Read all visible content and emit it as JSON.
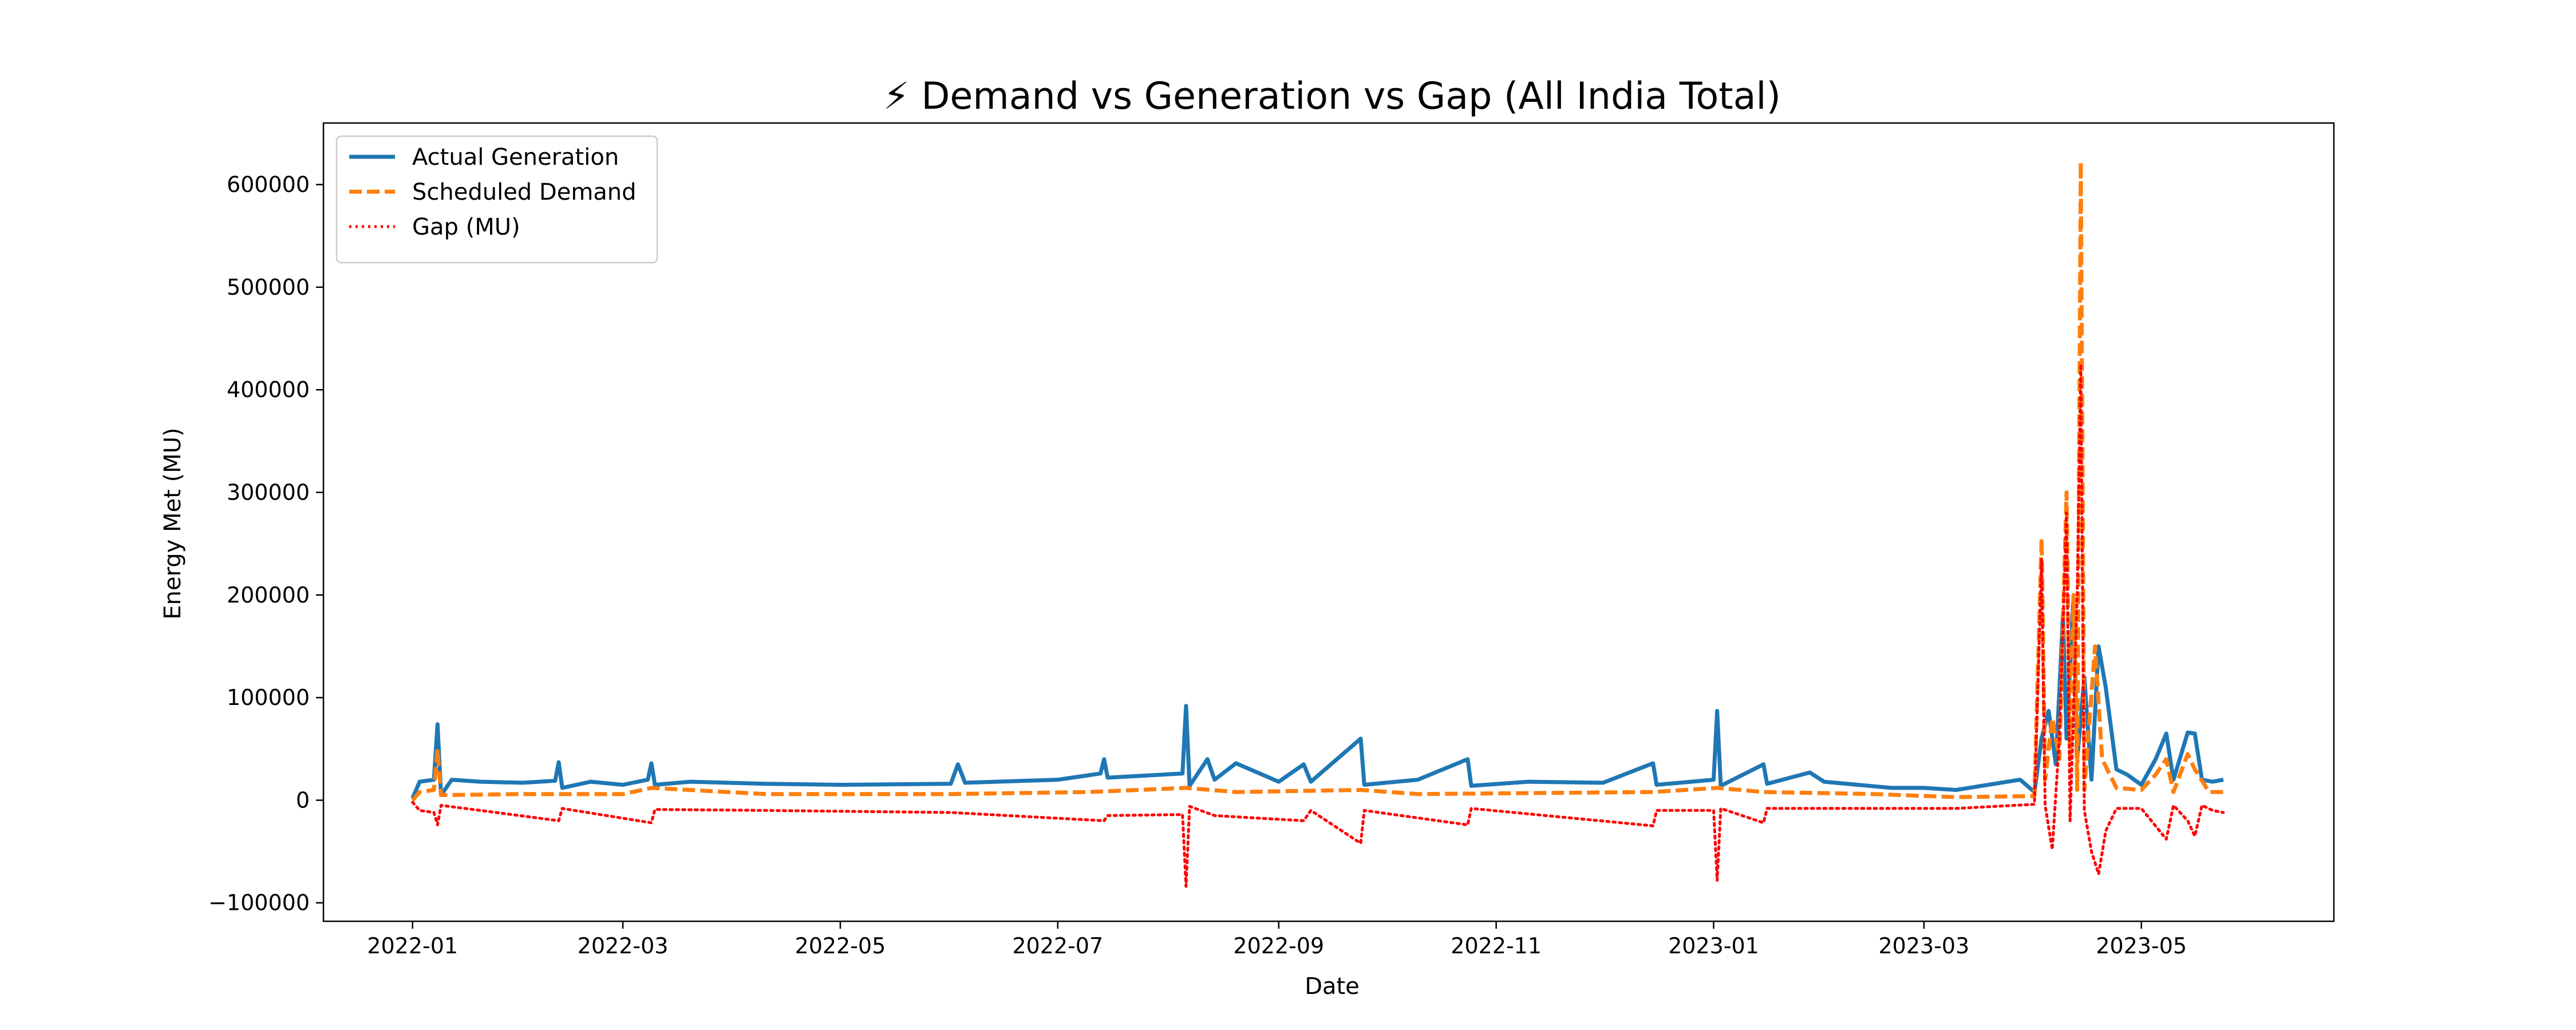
{
  "chart_data": {
    "type": "line",
    "title": "⚡ Demand vs Generation vs Gap (All India Total)",
    "xlabel": "Date",
    "ylabel": "Energy Met (MU)",
    "x_ticks": [
      "2022-01",
      "2022-03",
      "2022-05",
      "2022-07",
      "2022-09",
      "2022-11",
      "2023-01",
      "2023-03",
      "2023-05"
    ],
    "y_ticks": [
      -100000,
      0,
      100000,
      200000,
      300000,
      400000,
      500000,
      600000
    ],
    "y_tick_labels": [
      "−100000",
      "0",
      "100000",
      "200000",
      "300000",
      "400000",
      "500000",
      "600000"
    ],
    "xlim": [
      "2021-12-07",
      "2023-06-24"
    ],
    "ylim": [
      -118000,
      660000
    ],
    "grid": false,
    "legend_position": "top-left",
    "series": [
      {
        "name": "Actual Generation",
        "color": "#1f77b4",
        "style": "solid",
        "points": [
          [
            "2022-01-01",
            2000
          ],
          [
            "2022-01-03",
            18000
          ],
          [
            "2022-01-07",
            20000
          ],
          [
            "2022-01-08",
            74000
          ],
          [
            "2022-01-09",
            5000
          ],
          [
            "2022-01-12",
            20000
          ],
          [
            "2022-01-20",
            18000
          ],
          [
            "2022-02-01",
            17000
          ],
          [
            "2022-02-10",
            19000
          ],
          [
            "2022-02-11",
            37000
          ],
          [
            "2022-02-12",
            12000
          ],
          [
            "2022-02-20",
            18000
          ],
          [
            "2022-03-01",
            15000
          ],
          [
            "2022-03-08",
            20000
          ],
          [
            "2022-03-09",
            36000
          ],
          [
            "2022-03-10",
            15000
          ],
          [
            "2022-03-20",
            18000
          ],
          [
            "2022-04-10",
            16000
          ],
          [
            "2022-05-01",
            15000
          ],
          [
            "2022-06-01",
            16000
          ],
          [
            "2022-06-03",
            35000
          ],
          [
            "2022-06-05",
            17000
          ],
          [
            "2022-07-01",
            20000
          ],
          [
            "2022-07-13",
            26000
          ],
          [
            "2022-07-14",
            40000
          ],
          [
            "2022-07-15",
            22000
          ],
          [
            "2022-08-05",
            26000
          ],
          [
            "2022-08-06",
            92000
          ],
          [
            "2022-08-07",
            14000
          ],
          [
            "2022-08-12",
            40000
          ],
          [
            "2022-08-14",
            20000
          ],
          [
            "2022-08-20",
            36000
          ],
          [
            "2022-09-01",
            18000
          ],
          [
            "2022-09-08",
            35000
          ],
          [
            "2022-09-10",
            18000
          ],
          [
            "2022-09-24",
            60000
          ],
          [
            "2022-09-25",
            15000
          ],
          [
            "2022-10-10",
            20000
          ],
          [
            "2022-10-24",
            40000
          ],
          [
            "2022-10-25",
            14000
          ],
          [
            "2022-11-10",
            18000
          ],
          [
            "2022-12-01",
            17000
          ],
          [
            "2022-12-15",
            36000
          ],
          [
            "2022-12-16",
            15000
          ],
          [
            "2023-01-01",
            20000
          ],
          [
            "2023-01-02",
            87000
          ],
          [
            "2023-01-03",
            14000
          ],
          [
            "2023-01-15",
            35000
          ],
          [
            "2023-01-16",
            16000
          ],
          [
            "2023-01-28",
            27000
          ],
          [
            "2023-02-01",
            18000
          ],
          [
            "2023-02-20",
            12000
          ],
          [
            "2023-03-01",
            12000
          ],
          [
            "2023-03-10",
            10000
          ],
          [
            "2023-03-28",
            20000
          ],
          [
            "2023-04-01",
            8000
          ],
          [
            "2023-04-03",
            60000
          ],
          [
            "2023-04-05",
            87000
          ],
          [
            "2023-04-07",
            35000
          ],
          [
            "2023-04-09",
            180000
          ],
          [
            "2023-04-10",
            60000
          ],
          [
            "2023-04-12",
            200000
          ],
          [
            "2023-04-13",
            40000
          ],
          [
            "2023-04-15",
            120000
          ],
          [
            "2023-04-17",
            20000
          ],
          [
            "2023-04-19",
            150000
          ],
          [
            "2023-04-21",
            110000
          ],
          [
            "2023-04-24",
            30000
          ],
          [
            "2023-04-27",
            25000
          ],
          [
            "2023-05-01",
            15000
          ],
          [
            "2023-05-05",
            40000
          ],
          [
            "2023-05-08",
            65000
          ],
          [
            "2023-05-10",
            20000
          ],
          [
            "2023-05-14",
            66000
          ],
          [
            "2023-05-16",
            65000
          ],
          [
            "2023-05-18",
            20000
          ],
          [
            "2023-05-21",
            18000
          ],
          [
            "2023-05-24",
            20000
          ]
        ]
      },
      {
        "name": "Scheduled Demand",
        "color": "#ff7f0e",
        "style": "dashed",
        "points": [
          [
            "2022-01-01",
            0
          ],
          [
            "2022-01-03",
            8000
          ],
          [
            "2022-01-07",
            10000
          ],
          [
            "2022-01-08",
            50000
          ],
          [
            "2022-01-09",
            5000
          ],
          [
            "2022-02-01",
            6000
          ],
          [
            "2022-03-01",
            6000
          ],
          [
            "2022-03-09",
            12000
          ],
          [
            "2022-04-10",
            6000
          ],
          [
            "2022-06-01",
            6000
          ],
          [
            "2022-07-10",
            8000
          ],
          [
            "2022-08-06",
            12000
          ],
          [
            "2022-08-20",
            8000
          ],
          [
            "2022-09-24",
            10000
          ],
          [
            "2022-10-10",
            6000
          ],
          [
            "2022-12-15",
            8000
          ],
          [
            "2023-01-02",
            12000
          ],
          [
            "2023-01-15",
            8000
          ],
          [
            "2023-02-15",
            6000
          ],
          [
            "2023-03-10",
            3000
          ],
          [
            "2023-04-01",
            4000
          ],
          [
            "2023-04-03",
            255000
          ],
          [
            "2023-04-04",
            20000
          ],
          [
            "2023-04-06",
            80000
          ],
          [
            "2023-04-08",
            40000
          ],
          [
            "2023-04-10",
            300000
          ],
          [
            "2023-04-11",
            40000
          ],
          [
            "2023-04-12",
            200000
          ],
          [
            "2023-04-13",
            10000
          ],
          [
            "2023-04-14",
            622000
          ],
          [
            "2023-04-15",
            10000
          ],
          [
            "2023-04-18",
            150000
          ],
          [
            "2023-04-20",
            40000
          ],
          [
            "2023-04-24",
            12000
          ],
          [
            "2023-05-01",
            10000
          ],
          [
            "2023-05-05",
            25000
          ],
          [
            "2023-05-08",
            40000
          ],
          [
            "2023-05-10",
            8000
          ],
          [
            "2023-05-14",
            45000
          ],
          [
            "2023-05-16",
            30000
          ],
          [
            "2023-05-20",
            8000
          ],
          [
            "2023-05-24",
            8000
          ]
        ]
      },
      {
        "name": "Gap (MU)",
        "color": "#ff0000",
        "style": "dotted",
        "points": [
          [
            "2022-01-01",
            -2000
          ],
          [
            "2022-01-03",
            -10000
          ],
          [
            "2022-01-07",
            -12000
          ],
          [
            "2022-01-08",
            -24000
          ],
          [
            "2022-01-09",
            -5000
          ],
          [
            "2022-01-20",
            -10000
          ],
          [
            "2022-02-11",
            -20000
          ],
          [
            "2022-02-12",
            -8000
          ],
          [
            "2022-03-09",
            -22000
          ],
          [
            "2022-03-10",
            -9000
          ],
          [
            "2022-04-10",
            -10000
          ],
          [
            "2022-06-01",
            -12000
          ],
          [
            "2022-07-14",
            -20000
          ],
          [
            "2022-07-15",
            -15000
          ],
          [
            "2022-08-05",
            -14000
          ],
          [
            "2022-08-06",
            -84000
          ],
          [
            "2022-08-07",
            -6000
          ],
          [
            "2022-08-14",
            -15000
          ],
          [
            "2022-09-08",
            -20000
          ],
          [
            "2022-09-10",
            -10000
          ],
          [
            "2022-09-24",
            -42000
          ],
          [
            "2022-09-25",
            -10000
          ],
          [
            "2022-10-24",
            -24000
          ],
          [
            "2022-10-25",
            -8000
          ],
          [
            "2022-12-15",
            -25000
          ],
          [
            "2022-12-16",
            -10000
          ],
          [
            "2023-01-01",
            -10000
          ],
          [
            "2023-01-02",
            -78000
          ],
          [
            "2023-01-03",
            -8000
          ],
          [
            "2023-01-15",
            -22000
          ],
          [
            "2023-01-16",
            -8000
          ],
          [
            "2023-02-15",
            -8000
          ],
          [
            "2023-03-10",
            -8000
          ],
          [
            "2023-04-01",
            -4000
          ],
          [
            "2023-04-03",
            235000
          ],
          [
            "2023-04-04",
            -5000
          ],
          [
            "2023-04-06",
            -48000
          ],
          [
            "2023-04-08",
            60000
          ],
          [
            "2023-04-10",
            280000
          ],
          [
            "2023-04-11",
            -20000
          ],
          [
            "2023-04-13",
            200000
          ],
          [
            "2023-04-14",
            425000
          ],
          [
            "2023-04-15",
            -10000
          ],
          [
            "2023-04-17",
            -50000
          ],
          [
            "2023-04-19",
            -72000
          ],
          [
            "2023-04-21",
            -30000
          ],
          [
            "2023-04-24",
            -8000
          ],
          [
            "2023-05-01",
            -8000
          ],
          [
            "2023-05-08",
            -38000
          ],
          [
            "2023-05-10",
            -5000
          ],
          [
            "2023-05-14",
            -20000
          ],
          [
            "2023-05-16",
            -35000
          ],
          [
            "2023-05-18",
            -5000
          ],
          [
            "2023-05-21",
            -10000
          ],
          [
            "2023-05-24",
            -12000
          ]
        ]
      }
    ]
  }
}
